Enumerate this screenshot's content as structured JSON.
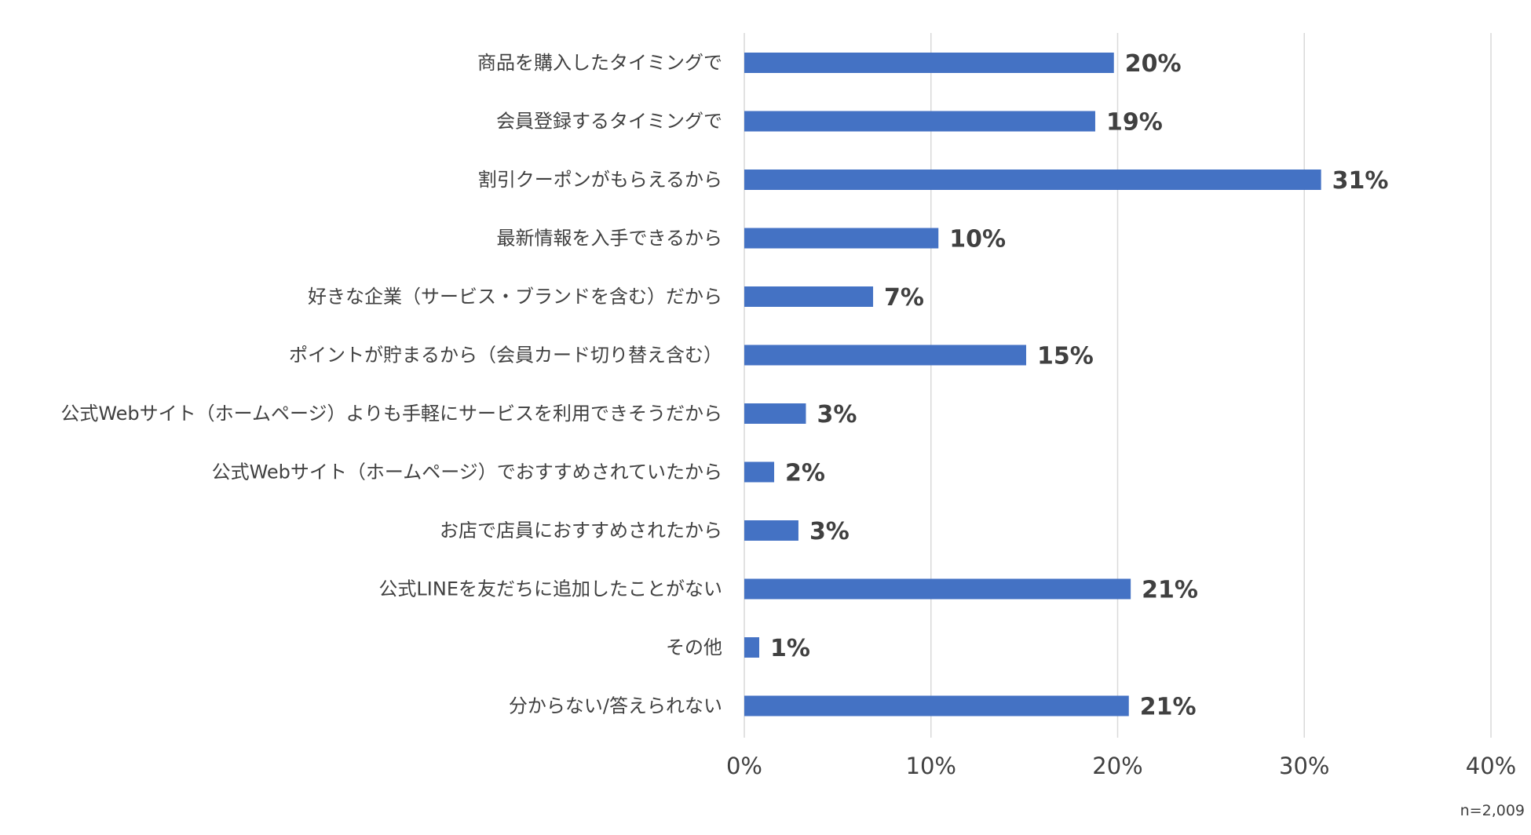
{
  "chart_data": {
    "type": "bar",
    "orientation": "horizontal",
    "categories": [
      "商品を購入したタイミングで",
      "会員登録するタイミングで",
      "割引クーポンがもらえるから",
      "最新情報を入手できるから",
      "好きな企業（サービス・ブランドを含む）だから",
      "ポイントが貯まるから（会員カード切り替え含む）",
      "公式Webサイト（ホームページ）よりも手軽にサービスを利用できそうだから",
      "公式Webサイト（ホームページ）でおすすめされていたから",
      "お店で店員におすすめされたから",
      "公式LINEを友だちに追加したことがない",
      "その他",
      "分からない/答えられない"
    ],
    "values": [
      19.8,
      18.8,
      30.9,
      10.4,
      6.9,
      15.1,
      3.3,
      1.6,
      2.9,
      20.7,
      0.8,
      20.6
    ],
    "value_labels": [
      "20%",
      "19%",
      "31%",
      "10%",
      "7%",
      "15%",
      "3%",
      "2%",
      "3%",
      "21%",
      "1%",
      "21%"
    ],
    "xlim": [
      0,
      40
    ],
    "xticks": [
      0,
      10,
      20,
      30,
      40
    ],
    "xtick_labels": [
      "0%",
      "10%",
      "20%",
      "30%",
      "40%"
    ],
    "grid": true,
    "bar_color": "#4472C4",
    "note": "n=2,009"
  }
}
